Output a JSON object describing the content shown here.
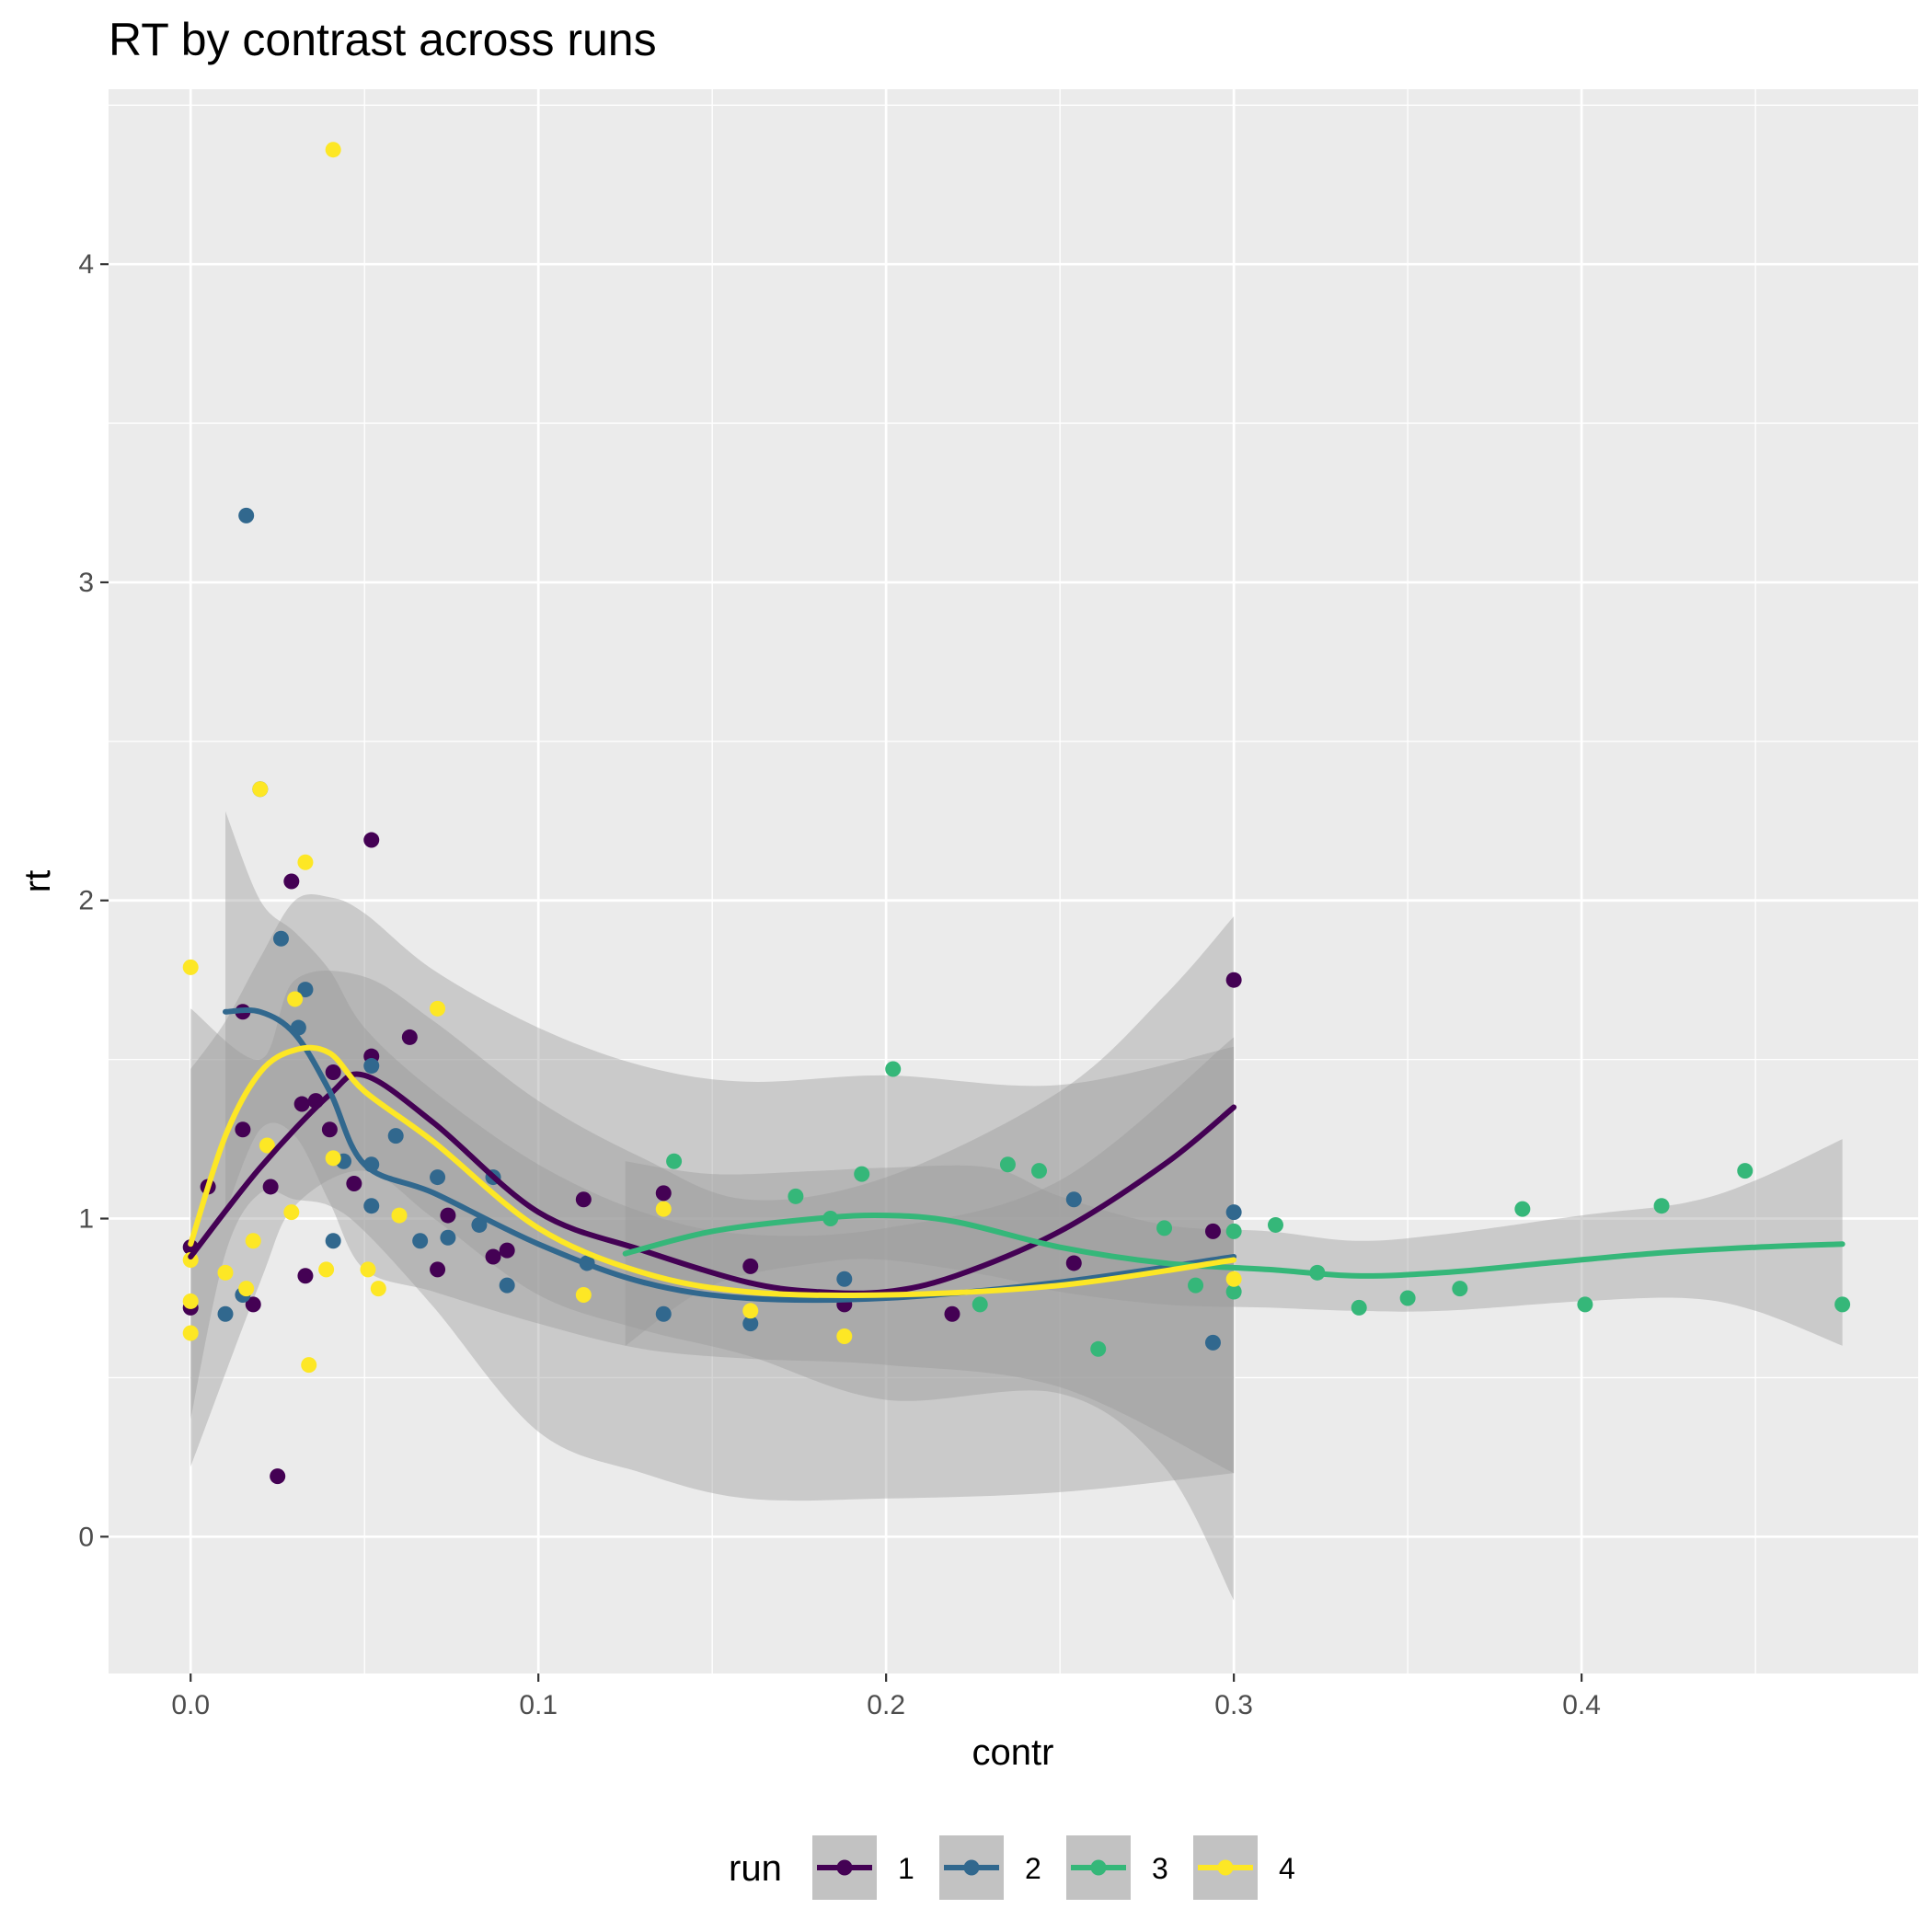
{
  "chart_data": {
    "type": "scatter",
    "title": "RT by contrast across runs",
    "xlabel": "contr",
    "ylabel": "rt",
    "xlim": [
      -0.0236,
      0.4968
    ],
    "ylim": [
      -0.43,
      4.55
    ],
    "x_ticks": [
      0.0,
      0.1,
      0.2,
      0.3,
      0.4
    ],
    "x_tick_labels": [
      "0.0",
      "0.1",
      "0.2",
      "0.3",
      "0.4"
    ],
    "y_ticks": [
      0,
      1,
      2,
      3,
      4
    ],
    "y_tick_labels": [
      "0",
      "1",
      "2",
      "3",
      "4"
    ],
    "grid": true,
    "legend": {
      "title": "run",
      "position": "bottom"
    },
    "series": [
      {
        "name": "1",
        "color": "#440154",
        "points": [
          [
            0.0,
            0.91
          ],
          [
            0.0,
            0.72
          ],
          [
            0.005,
            1.1
          ],
          [
            0.015,
            1.65
          ],
          [
            0.015,
            1.28
          ],
          [
            0.018,
            0.73
          ],
          [
            0.023,
            1.1
          ],
          [
            0.025,
            0.19
          ],
          [
            0.029,
            2.06
          ],
          [
            0.032,
            1.36
          ],
          [
            0.033,
            0.82
          ],
          [
            0.036,
            1.37
          ],
          [
            0.04,
            1.28
          ],
          [
            0.041,
            1.46
          ],
          [
            0.047,
            1.11
          ],
          [
            0.052,
            2.19
          ],
          [
            0.052,
            1.51
          ],
          [
            0.063,
            1.57
          ],
          [
            0.071,
            0.84
          ],
          [
            0.074,
            1.01
          ],
          [
            0.087,
            0.88
          ],
          [
            0.091,
            0.9
          ],
          [
            0.113,
            1.06
          ],
          [
            0.136,
            1.08
          ],
          [
            0.161,
            0.85
          ],
          [
            0.188,
            0.73
          ],
          [
            0.219,
            0.7
          ],
          [
            0.254,
            0.86
          ],
          [
            0.294,
            0.96
          ],
          [
            0.3,
            1.75
          ]
        ],
        "fit": [
          [
            0.0,
            0.88
          ],
          [
            0.02,
            1.16
          ],
          [
            0.04,
            1.39
          ],
          [
            0.05,
            1.45
          ],
          [
            0.07,
            1.3
          ],
          [
            0.1,
            1.02
          ],
          [
            0.13,
            0.9
          ],
          [
            0.16,
            0.8
          ],
          [
            0.18,
            0.77
          ],
          [
            0.2,
            0.77
          ],
          [
            0.22,
            0.82
          ],
          [
            0.25,
            0.96
          ],
          [
            0.28,
            1.17
          ],
          [
            0.3,
            1.35
          ]
        ],
        "ci": [
          [
            0.0,
            0.22,
            1.66
          ],
          [
            0.02,
            0.8,
            1.5
          ],
          [
            0.03,
            1.04,
            1.75
          ],
          [
            0.05,
            1.15,
            1.76
          ],
          [
            0.07,
            1.0,
            1.62
          ],
          [
            0.1,
            0.76,
            1.37
          ],
          [
            0.13,
            0.65,
            1.19
          ],
          [
            0.16,
            0.57,
            1.06
          ],
          [
            0.2,
            0.43,
            1.13
          ],
          [
            0.25,
            0.45,
            1.4
          ],
          [
            0.28,
            0.22,
            1.7
          ],
          [
            0.3,
            -0.2,
            1.95
          ]
        ]
      },
      {
        "name": "2",
        "color": "#31688E",
        "points": [
          [
            0.01,
            0.7
          ],
          [
            0.015,
            0.76
          ],
          [
            0.016,
            3.21
          ],
          [
            0.02,
            2.35
          ],
          [
            0.026,
            1.88
          ],
          [
            0.031,
            1.6
          ],
          [
            0.033,
            1.72
          ],
          [
            0.041,
            0.93
          ],
          [
            0.044,
            1.18
          ],
          [
            0.052,
            1.04
          ],
          [
            0.052,
            1.17
          ],
          [
            0.052,
            1.48
          ],
          [
            0.059,
            1.26
          ],
          [
            0.066,
            0.93
          ],
          [
            0.071,
            1.13
          ],
          [
            0.074,
            0.94
          ],
          [
            0.083,
            0.98
          ],
          [
            0.087,
            1.13
          ],
          [
            0.091,
            0.79
          ],
          [
            0.114,
            0.86
          ],
          [
            0.136,
            0.7
          ],
          [
            0.161,
            0.67
          ],
          [
            0.188,
            0.81
          ],
          [
            0.254,
            1.06
          ],
          [
            0.294,
            0.61
          ],
          [
            0.3,
            1.02
          ]
        ],
        "fit": [
          [
            0.01,
            1.65
          ],
          [
            0.02,
            1.65
          ],
          [
            0.03,
            1.58
          ],
          [
            0.04,
            1.4
          ],
          [
            0.05,
            1.17
          ],
          [
            0.07,
            1.08
          ],
          [
            0.1,
            0.92
          ],
          [
            0.13,
            0.8
          ],
          [
            0.16,
            0.75
          ],
          [
            0.2,
            0.75
          ],
          [
            0.25,
            0.8
          ],
          [
            0.3,
            0.88
          ]
        ],
        "ci": [
          [
            0.01,
            1.02,
            2.28
          ],
          [
            0.02,
            1.28,
            2.0
          ],
          [
            0.03,
            1.26,
            1.9
          ],
          [
            0.04,
            1.05,
            1.78
          ],
          [
            0.05,
            0.84,
            1.6
          ],
          [
            0.07,
            0.77,
            1.4
          ],
          [
            0.1,
            0.67,
            1.17
          ],
          [
            0.13,
            0.59,
            1.02
          ],
          [
            0.16,
            0.56,
            0.95
          ],
          [
            0.2,
            0.54,
            0.97
          ],
          [
            0.25,
            0.47,
            1.12
          ],
          [
            0.3,
            0.2,
            1.57
          ]
        ]
      },
      {
        "name": "3",
        "color": "#35B779",
        "points": [
          [
            0.139,
            1.18
          ],
          [
            0.174,
            1.07
          ],
          [
            0.184,
            1.0
          ],
          [
            0.193,
            1.14
          ],
          [
            0.202,
            1.47
          ],
          [
            0.227,
            0.73
          ],
          [
            0.235,
            1.17
          ],
          [
            0.244,
            1.15
          ],
          [
            0.261,
            0.59
          ],
          [
            0.28,
            0.97
          ],
          [
            0.289,
            0.79
          ],
          [
            0.3,
            0.96
          ],
          [
            0.3,
            0.77
          ],
          [
            0.312,
            0.98
          ],
          [
            0.324,
            0.83
          ],
          [
            0.336,
            0.72
          ],
          [
            0.35,
            0.75
          ],
          [
            0.365,
            0.78
          ],
          [
            0.383,
            1.03
          ],
          [
            0.401,
            0.73
          ],
          [
            0.423,
            1.04
          ],
          [
            0.447,
            1.15
          ],
          [
            0.475,
            0.73
          ]
        ],
        "fit": [
          [
            0.125,
            0.89
          ],
          [
            0.15,
            0.96
          ],
          [
            0.18,
            1.0
          ],
          [
            0.2,
            1.01
          ],
          [
            0.22,
            0.99
          ],
          [
            0.25,
            0.91
          ],
          [
            0.28,
            0.86
          ],
          [
            0.31,
            0.84
          ],
          [
            0.335,
            0.82
          ],
          [
            0.36,
            0.83
          ],
          [
            0.39,
            0.86
          ],
          [
            0.42,
            0.89
          ],
          [
            0.45,
            0.91
          ],
          [
            0.475,
            0.92
          ]
        ],
        "ci": [
          [
            0.125,
            0.6,
            1.18
          ],
          [
            0.15,
            0.79,
            1.14
          ],
          [
            0.18,
            0.86,
            1.15
          ],
          [
            0.2,
            0.87,
            1.16
          ],
          [
            0.23,
            0.82,
            1.16
          ],
          [
            0.25,
            0.77,
            1.07
          ],
          [
            0.28,
            0.73,
            0.98
          ],
          [
            0.31,
            0.72,
            0.96
          ],
          [
            0.335,
            0.71,
            0.93
          ],
          [
            0.36,
            0.71,
            0.95
          ],
          [
            0.4,
            0.74,
            1.01
          ],
          [
            0.43,
            0.75,
            1.05
          ],
          [
            0.45,
            0.71,
            1.12
          ],
          [
            0.475,
            0.6,
            1.25
          ]
        ]
      },
      {
        "name": "4",
        "color": "#FDE725",
        "points": [
          [
            0.0,
            1.79
          ],
          [
            0.0,
            0.87
          ],
          [
            0.0,
            0.74
          ],
          [
            0.0,
            0.64
          ],
          [
            0.01,
            0.83
          ],
          [
            0.016,
            0.78
          ],
          [
            0.018,
            0.93
          ],
          [
            0.02,
            2.35
          ],
          [
            0.022,
            1.23
          ],
          [
            0.029,
            1.02
          ],
          [
            0.03,
            1.69
          ],
          [
            0.033,
            2.12
          ],
          [
            0.034,
            0.54
          ],
          [
            0.039,
            0.84
          ],
          [
            0.041,
            1.19
          ],
          [
            0.041,
            4.36
          ],
          [
            0.051,
            0.84
          ],
          [
            0.054,
            0.78
          ],
          [
            0.06,
            1.01
          ],
          [
            0.071,
            1.66
          ],
          [
            0.113,
            0.76
          ],
          [
            0.136,
            1.03
          ],
          [
            0.161,
            0.71
          ],
          [
            0.188,
            0.63
          ],
          [
            0.3,
            0.81
          ]
        ],
        "fit": [
          [
            0.0,
            0.92
          ],
          [
            0.01,
            1.26
          ],
          [
            0.02,
            1.46
          ],
          [
            0.03,
            1.53
          ],
          [
            0.04,
            1.52
          ],
          [
            0.05,
            1.4
          ],
          [
            0.07,
            1.24
          ],
          [
            0.1,
            0.97
          ],
          [
            0.13,
            0.83
          ],
          [
            0.16,
            0.77
          ],
          [
            0.2,
            0.76
          ],
          [
            0.25,
            0.79
          ],
          [
            0.3,
            0.87
          ]
        ],
        "ci": [
          [
            0.0,
            0.37,
            1.47
          ],
          [
            0.01,
            0.89,
            1.62
          ],
          [
            0.02,
            1.08,
            1.82
          ],
          [
            0.03,
            1.06,
            2.0
          ],
          [
            0.04,
            1.04,
            2.01
          ],
          [
            0.05,
            0.96,
            1.96
          ],
          [
            0.07,
            0.72,
            1.78
          ],
          [
            0.1,
            0.33,
            1.6
          ],
          [
            0.13,
            0.2,
            1.48
          ],
          [
            0.16,
            0.12,
            1.43
          ],
          [
            0.2,
            0.12,
            1.45
          ],
          [
            0.25,
            0.14,
            1.42
          ],
          [
            0.3,
            0.2,
            1.54
          ]
        ]
      }
    ]
  }
}
